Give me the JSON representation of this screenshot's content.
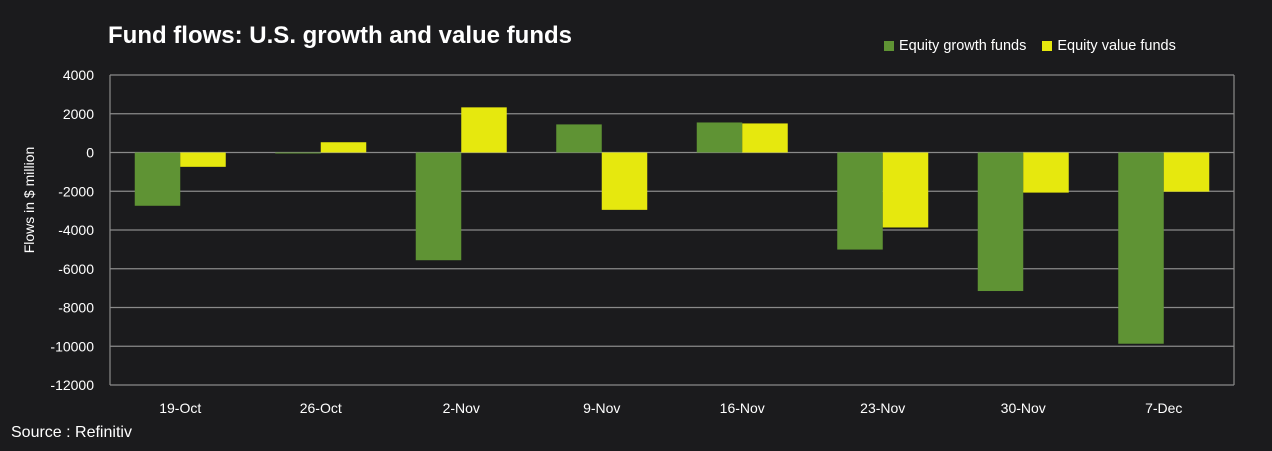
{
  "chart_data": {
    "type": "bar",
    "title": "Fund flows: U.S. growth and value funds",
    "xlabel": "",
    "ylabel": "Flows in $ million",
    "ylim": [
      -12000,
      4000
    ],
    "yticks": [
      4000,
      2000,
      0,
      -2000,
      -4000,
      -6000,
      -8000,
      -10000,
      -12000
    ],
    "grid": true,
    "legend_position": "top-right",
    "categories": [
      "19-Oct",
      "26-Oct",
      "2-Nov",
      "9-Nov",
      "16-Nov",
      "23-Nov",
      "30-Nov",
      "7-Dec"
    ],
    "series": [
      {
        "name": "Equity growth funds",
        "color": "#5f9334",
        "values": [
          -2750,
          -40,
          -5560,
          1450,
          1550,
          -5010,
          -7150,
          -9870
        ]
      },
      {
        "name": "Equity value funds",
        "color": "#e6e80e",
        "values": [
          -740,
          530,
          2330,
          -2960,
          1500,
          -3870,
          -2070,
          -2020
        ]
      }
    ],
    "source": "Source : Refinitiv"
  }
}
